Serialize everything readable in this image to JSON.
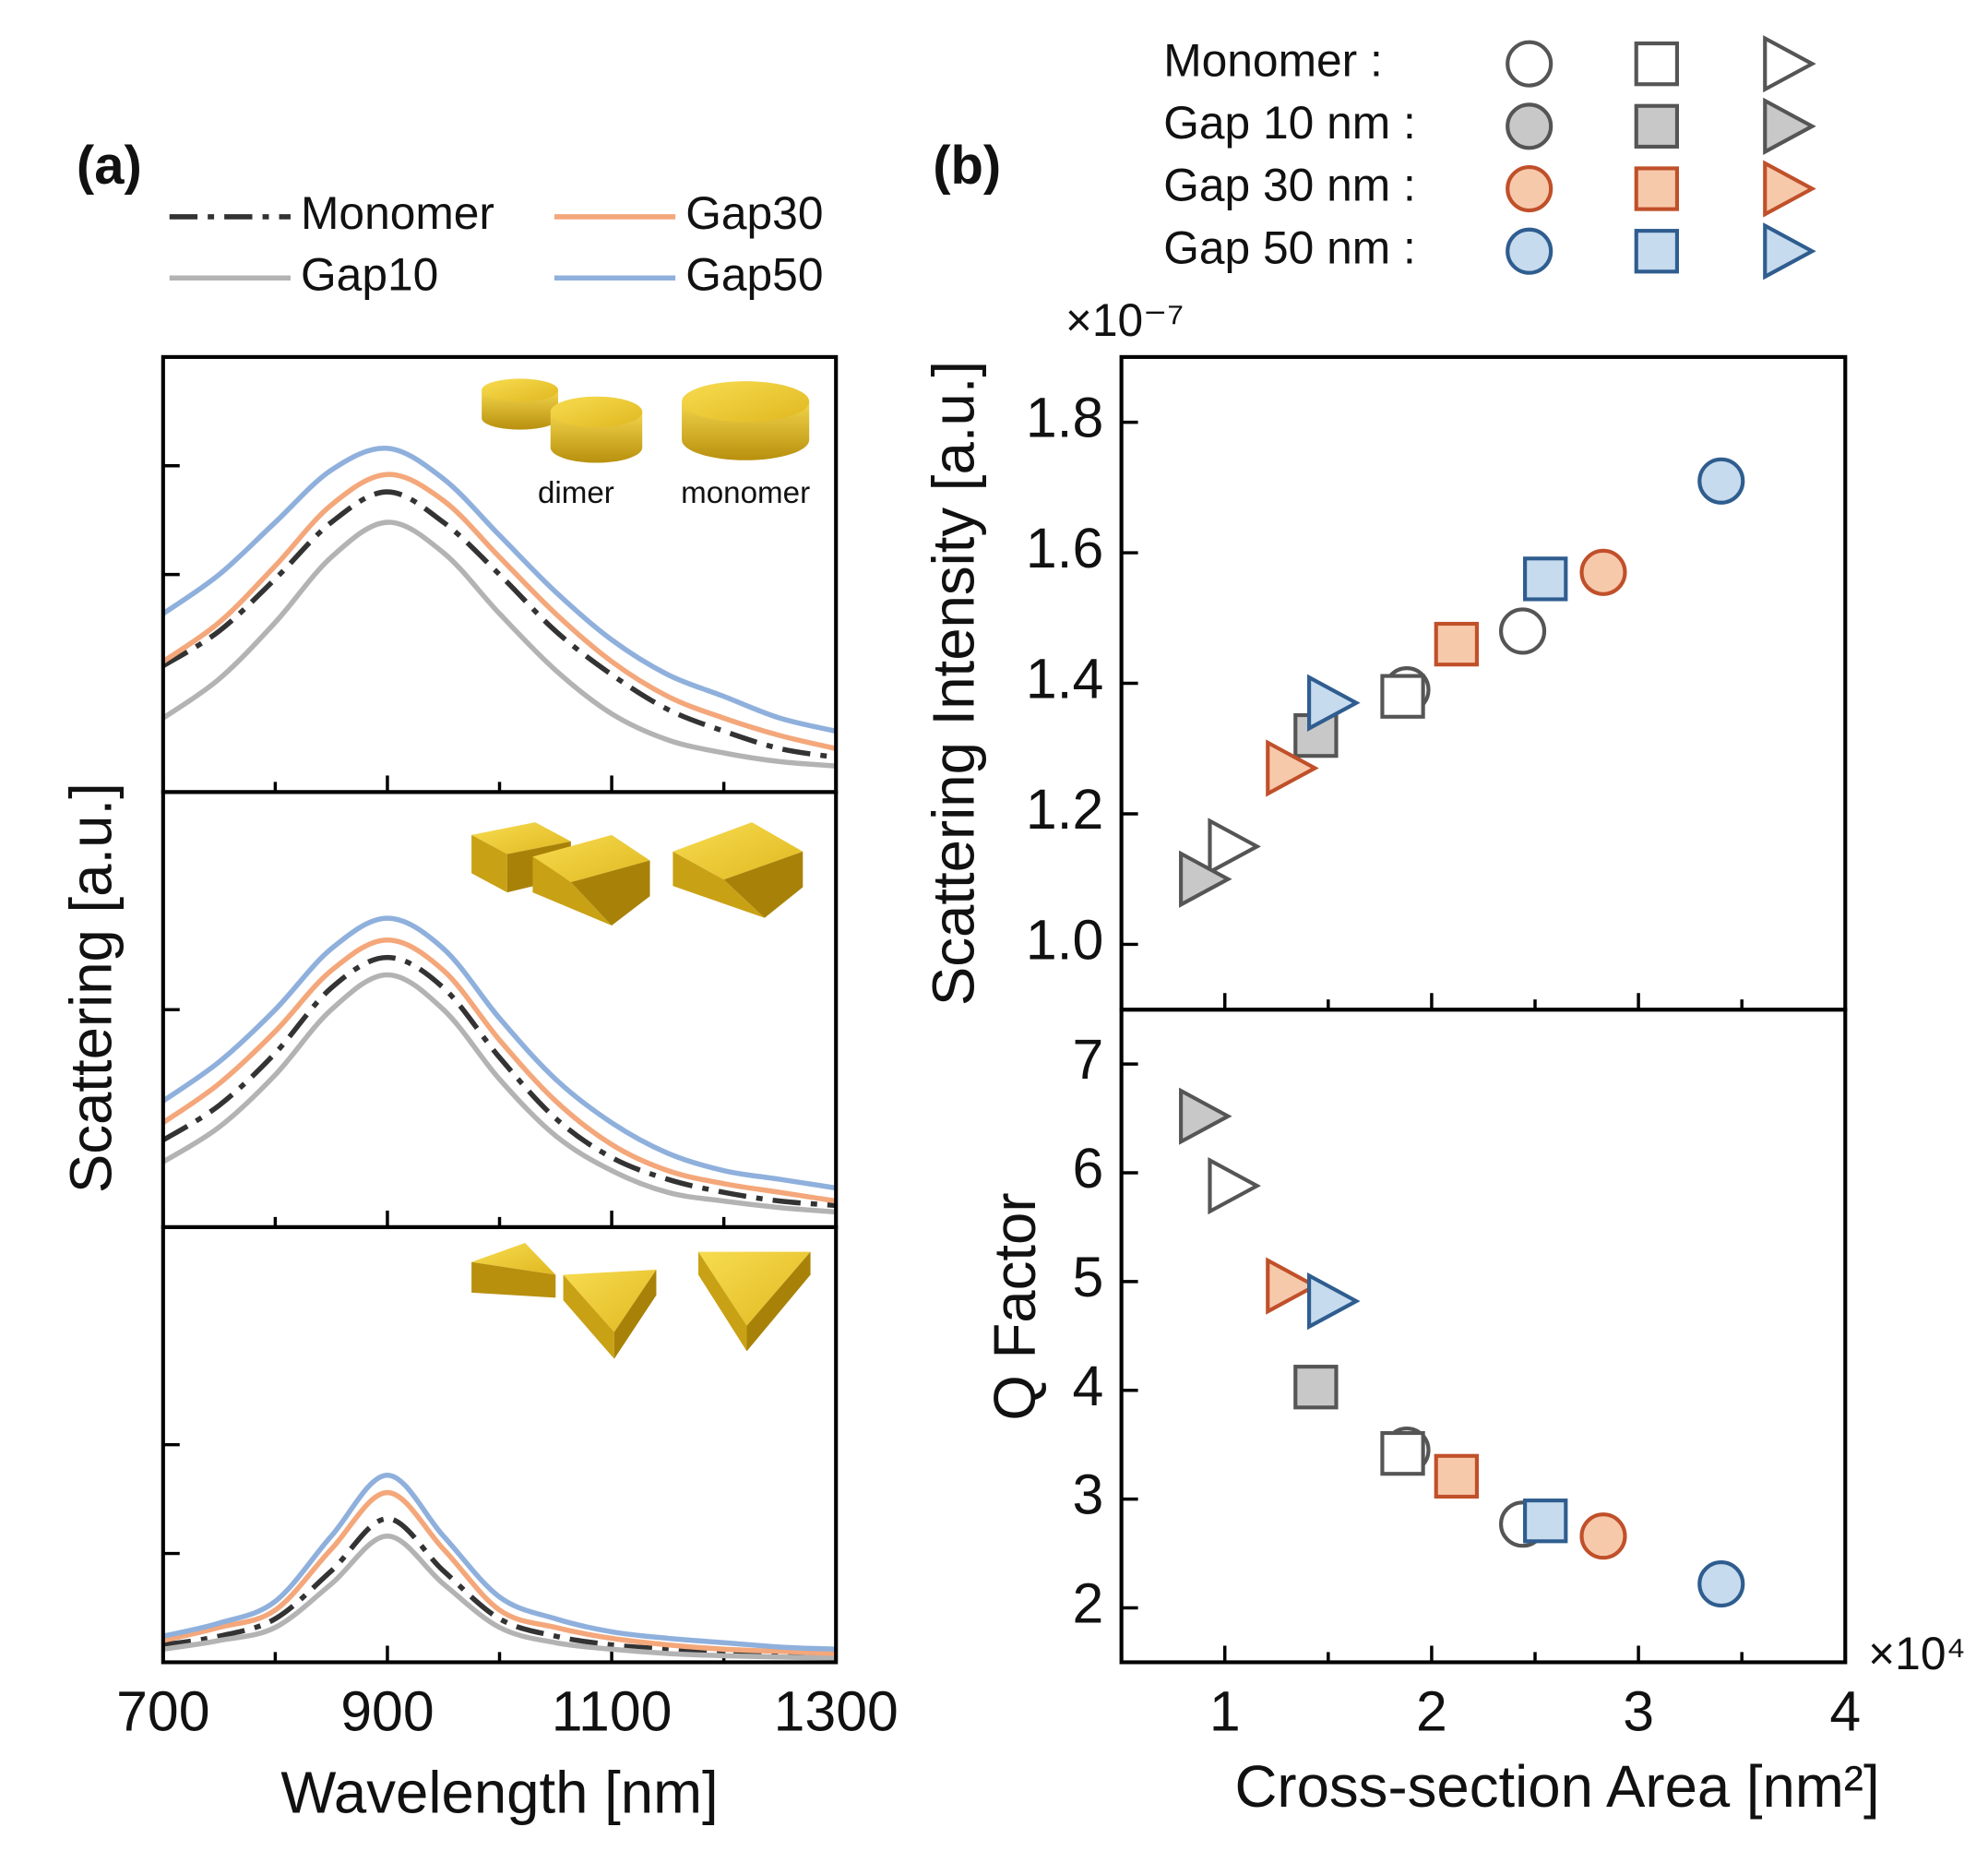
{
  "chart_data": [
    {
      "type": "line",
      "panel": "(a)",
      "ylabel": "Scattering [a.u.]",
      "xlabel": "Wavelength [nm]",
      "xlim": [
        700,
        1300
      ],
      "xticks": [
        700,
        900,
        1100,
        1300
      ],
      "xminorticks": [
        800,
        1000,
        1200
      ],
      "annotations": [
        "dimer",
        "monomer"
      ],
      "x": [
        700,
        750,
        800,
        850,
        900,
        950,
        1000,
        1050,
        1100,
        1150,
        1200,
        1250,
        1300
      ],
      "legend": [
        {
          "name": "Monomer",
          "color": "#333333",
          "style": "dashdot"
        },
        {
          "name": "Gap10",
          "color": "#b3b3b3",
          "style": "solid"
        },
        {
          "name": "Gap30",
          "color": "#f4a77a",
          "style": "solid"
        },
        {
          "name": "Gap50",
          "color": "#8fb0dc",
          "style": "solid"
        }
      ],
      "subplots": [
        {
          "ylim": [
            0,
            1
          ],
          "yticks": [
            0.5,
            0.75
          ],
          "series": [
            [
              0.29,
              0.37,
              0.49,
              0.62,
              0.69,
              0.62,
              0.5,
              0.37,
              0.27,
              0.19,
              0.14,
              0.1,
              0.08
            ],
            [
              0.17,
              0.26,
              0.39,
              0.54,
              0.62,
              0.55,
              0.41,
              0.28,
              0.18,
              0.12,
              0.09,
              0.07,
              0.06
            ],
            [
              0.3,
              0.39,
              0.52,
              0.66,
              0.73,
              0.67,
              0.54,
              0.41,
              0.3,
              0.22,
              0.17,
              0.13,
              0.1
            ],
            [
              0.41,
              0.5,
              0.62,
              0.74,
              0.79,
              0.72,
              0.59,
              0.46,
              0.35,
              0.27,
              0.22,
              0.17,
              0.14
            ]
          ]
        },
        {
          "ylim": [
            0,
            1
          ],
          "yticks": [
            0.5
          ],
          "series": [
            [
              0.2,
              0.28,
              0.4,
              0.55,
              0.62,
              0.55,
              0.39,
              0.25,
              0.16,
              0.11,
              0.08,
              0.06,
              0.05
            ],
            [
              0.15,
              0.23,
              0.35,
              0.5,
              0.58,
              0.5,
              0.34,
              0.21,
              0.13,
              0.08,
              0.06,
              0.045,
              0.035
            ],
            [
              0.24,
              0.33,
              0.45,
              0.59,
              0.66,
              0.59,
              0.43,
              0.29,
              0.19,
              0.13,
              0.1,
              0.08,
              0.06
            ],
            [
              0.29,
              0.38,
              0.5,
              0.64,
              0.71,
              0.64,
              0.48,
              0.34,
              0.24,
              0.17,
              0.13,
              0.11,
              0.09
            ]
          ]
        },
        {
          "ylim": [
            0,
            1
          ],
          "yticks": [
            0.25,
            0.5
          ],
          "series": [
            [
              0.04,
              0.06,
              0.1,
              0.21,
              0.33,
              0.21,
              0.1,
              0.06,
              0.04,
              0.03,
              0.02,
              0.02,
              0.015
            ],
            [
              0.03,
              0.05,
              0.08,
              0.18,
              0.29,
              0.18,
              0.08,
              0.045,
              0.03,
              0.02,
              0.015,
              0.012,
              0.01
            ],
            [
              0.05,
              0.08,
              0.12,
              0.26,
              0.39,
              0.26,
              0.12,
              0.08,
              0.055,
              0.04,
              0.03,
              0.025,
              0.02
            ],
            [
              0.06,
              0.09,
              0.14,
              0.29,
              0.43,
              0.29,
              0.15,
              0.1,
              0.07,
              0.055,
              0.045,
              0.035,
              0.03
            ]
          ]
        }
      ]
    },
    {
      "type": "scatter",
      "panel": "(b)",
      "xlabel": "Cross-section Area [nm²]",
      "xmultiplier": "×10⁴",
      "xlim": [
        0.5,
        4
      ],
      "xticks": [
        1,
        2,
        3,
        4
      ],
      "xminorticks": [
        1.5,
        2.5,
        3.5
      ],
      "subplots": [
        {
          "ylabel": "Scattering Intensity [a.u.]",
          "multiplier": "×10⁻⁷",
          "ylim": [
            0.9,
            1.9
          ],
          "yticks": [
            {
              "value": 1,
              "label": "1.0"
            },
            1.2,
            1.4,
            1.6,
            1.8
          ]
        },
        {
          "ylabel": "Q Factor",
          "ylim": [
            1.5,
            7.5
          ],
          "yticks": [
            2,
            3,
            4,
            5,
            6,
            7
          ]
        }
      ],
      "groups": [
        {
          "name": "Monomer :",
          "fill": "#ffffff",
          "stroke": "#555555",
          "markers": [
            {
              "shape": "circle",
              "x": [
                1.88,
                2.44
              ],
              "intensity": [
                1.39,
                1.48
              ],
              "q_factor": [
                3.45,
                2.77
              ]
            },
            {
              "shape": "square",
              "x": [
                1.86
              ],
              "intensity": [
                1.38
              ],
              "q_factor": [
                3.42
              ]
            },
            {
              "shape": "triangle",
              "x": [
                1.02
              ],
              "intensity": [
                1.15
              ],
              "q_factor": [
                5.88
              ]
            }
          ]
        },
        {
          "name": "Gap 10 nm :",
          "fill": "#c8c8c8",
          "stroke": "#555555",
          "markers": [
            {
              "shape": "circle",
              "x": [],
              "intensity": [],
              "q_factor": []
            },
            {
              "shape": "square",
              "x": [
                1.44
              ],
              "intensity": [
                1.32
              ],
              "q_factor": [
                4.03
              ]
            },
            {
              "shape": "triangle",
              "x": [
                0.88
              ],
              "intensity": [
                1.1
              ],
              "q_factor": [
                6.52
              ]
            }
          ]
        },
        {
          "name": "Gap 30 nm :",
          "fill": "#f7c9ab",
          "stroke": "#c0502a",
          "markers": [
            {
              "shape": "circle",
              "x": [
                2.83
              ],
              "intensity": [
                1.57
              ],
              "q_factor": [
                2.66
              ]
            },
            {
              "shape": "square",
              "x": [
                2.12
              ],
              "intensity": [
                1.46
              ],
              "q_factor": [
                3.21
              ]
            },
            {
              "shape": "triangle",
              "x": [
                1.3
              ],
              "intensity": [
                1.27
              ],
              "q_factor": [
                4.96
              ]
            }
          ]
        },
        {
          "name": "Gap 50 nm :",
          "fill": "#c6dbee",
          "stroke": "#2f5d8f",
          "markers": [
            {
              "shape": "circle",
              "x": [
                3.4
              ],
              "intensity": [
                1.71
              ],
              "q_factor": [
                2.22
              ]
            },
            {
              "shape": "square",
              "x": [
                2.55
              ],
              "intensity": [
                1.56
              ],
              "q_factor": [
                2.8
              ]
            },
            {
              "shape": "triangle",
              "x": [
                1.5
              ],
              "intensity": [
                1.37
              ],
              "q_factor": [
                4.82
              ]
            }
          ]
        }
      ]
    }
  ]
}
